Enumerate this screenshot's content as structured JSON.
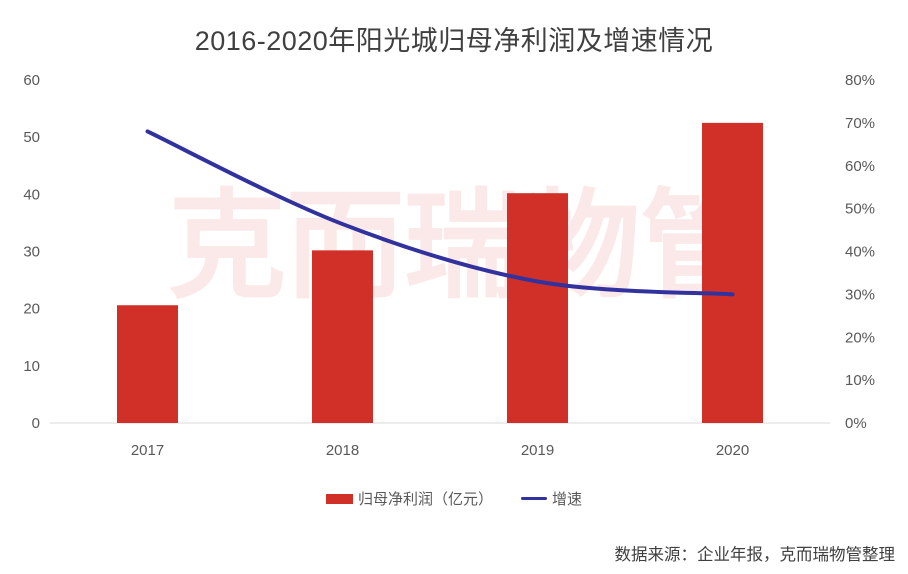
{
  "title": "2016-2020年阳光城归母净利润及增速情况",
  "watermark": "克而瑞物管",
  "source_note": "数据来源：企业年报，克而瑞物管整理",
  "legend": {
    "bar_label": "归母净利润（亿元）",
    "line_label": "增速"
  },
  "colors": {
    "bar": "#d03028",
    "line": "#32329e",
    "axis_line": "#d9d9d9",
    "tick_text": "#595959",
    "title_text": "#404040",
    "watermark_text": "rgba(208,43,36,0.105)"
  },
  "chart_data": {
    "type": "bar",
    "subtype": "bar-line-combo",
    "title": "2016-2020年阳光城归母净利润及增速情况",
    "categories": [
      "2017",
      "2018",
      "2019",
      "2020"
    ],
    "series": [
      {
        "name": "归母净利润（亿元）",
        "type": "bar",
        "axis": "left",
        "values": [
          20.6,
          30.2,
          40.2,
          52.5
        ]
      },
      {
        "name": "增速",
        "type": "line",
        "axis": "right",
        "unit": "%",
        "values": [
          68,
          46.4,
          33,
          30
        ]
      }
    ],
    "left_axis": {
      "min": 0,
      "max": 60,
      "step": 10,
      "tick_labels": [
        "0",
        "10",
        "20",
        "30",
        "40",
        "50",
        "60"
      ]
    },
    "right_axis": {
      "min": 0,
      "max": 80,
      "step": 10,
      "tick_labels": [
        "0%",
        "10%",
        "20%",
        "30%",
        "40%",
        "50%",
        "60%",
        "70%",
        "80%"
      ]
    },
    "grid": false,
    "legend_position": "bottom",
    "source": "数据来源：企业年报，克而瑞物管整理"
  }
}
